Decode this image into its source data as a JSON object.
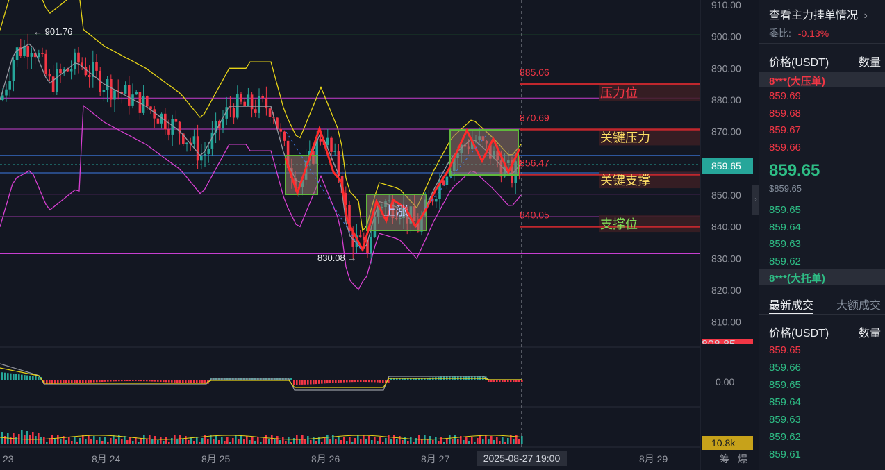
{
  "chart": {
    "price_axis": [
      "910.00",
      "900.00",
      "890.00",
      "880.00",
      "870.00",
      "860.00",
      "850.00",
      "840.00",
      "830.00",
      "820.00",
      "810.00"
    ],
    "osc_axis_label": "0.00",
    "current_price_tag": "859.65",
    "volume_tag": "10.8k",
    "hidden_tag": "808.85",
    "date_labels": [
      "23",
      "8月 24",
      "8月 25",
      "8月 26",
      "8月 27",
      "8月 29"
    ],
    "crosshair_date": "2025-08-27 19:00",
    "axis_icons": [
      "筹",
      "爆"
    ],
    "high_label": "901.76",
    "low_label": "830.08",
    "level_values": [
      "885.06",
      "870.69",
      "856.47",
      "840.05"
    ],
    "level_labels": [
      "压力位",
      "关键压力",
      "关键支撑",
      "支撑位"
    ],
    "pattern_text": "上涨",
    "colors": {
      "up": "#26a69a",
      "down": "#f23645",
      "bg": "#131722",
      "upper_band": "#e6d317",
      "lower_band": "#d63fd0",
      "mid_band": "#9598a1",
      "pattern_line": "#ff2a2a",
      "box_border": "#5fb83c",
      "green_level": "#33b83c",
      "magenta_level": "#c73fd0",
      "blue_level": "#3d7be5"
    }
  },
  "panel": {
    "title": "查看主力挂单情况",
    "ratio_label": "委比:",
    "ratio_value": "-0.13%",
    "header_price": "价格(USDT)",
    "header_qty": "数量",
    "ask_big": "8***(大压单)",
    "asks": [
      "859.69",
      "859.68",
      "859.67",
      "859.66"
    ],
    "last_price": "859.65",
    "last_price_usd": "$859.65",
    "bids": [
      "859.65",
      "859.64",
      "859.63",
      "859.62"
    ],
    "bid_big": "8***(大托单)",
    "tab_latest": "最新成交",
    "tab_large": "大额成交",
    "trades_header_price": "价格(USDT)",
    "trades_header_qty": "数量",
    "trades": [
      {
        "price": "859.65",
        "side": "sell"
      },
      {
        "price": "859.66",
        "side": "buy"
      },
      {
        "price": "859.65",
        "side": "buy"
      },
      {
        "price": "859.64",
        "side": "buy"
      },
      {
        "price": "859.63",
        "side": "buy"
      },
      {
        "price": "859.62",
        "side": "buy"
      },
      {
        "price": "859.61",
        "side": "buy"
      }
    ]
  }
}
